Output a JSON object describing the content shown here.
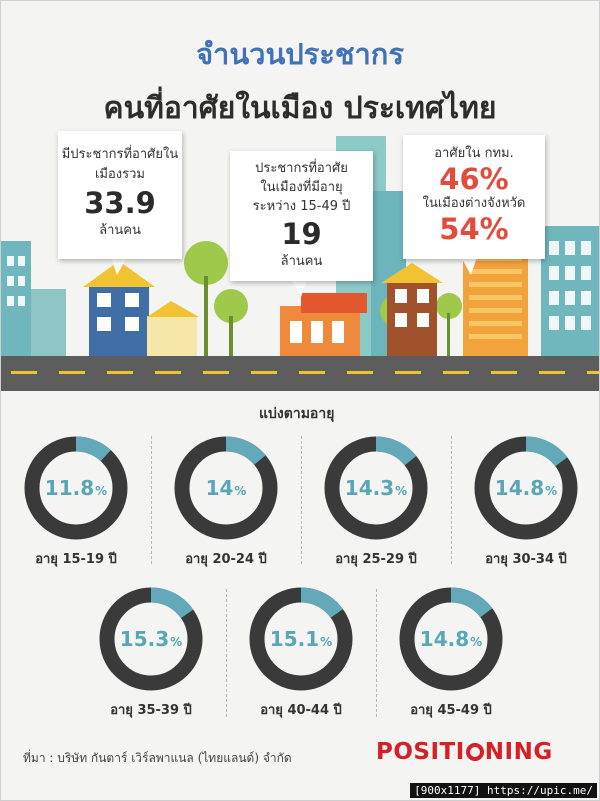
{
  "header": {
    "title_line1": "จำนวนประชากร",
    "title_line2": "คนที่อาศัยในเมือง ประเทศไทย"
  },
  "cards": {
    "total": {
      "line1": "มีประชากรที่อาศัยใน",
      "line2": "เมืองรวม",
      "value": "33.9",
      "unit": "ล้านคน"
    },
    "age_15_49": {
      "line1": "ประชากรที่อาศัย",
      "line2": "ในเมืองที่มีอายุ",
      "line3": "ระหว่าง 15-49 ปี",
      "value": "19",
      "unit": "ล้านคน"
    },
    "location": {
      "label1": "อาศัยใน กทม.",
      "value1": "46%",
      "label2": "ในเมืองต่างจังหวัด",
      "value2": "54%"
    }
  },
  "age_section": {
    "heading": "แบ่งตามอายุ",
    "groups": [
      {
        "label": "อายุ 15-19 ปี",
        "value": "11.8",
        "percent": 11.8,
        "unit": "%"
      },
      {
        "label": "อายุ 20-24 ปี",
        "value": "14",
        "percent": 14,
        "unit": "%"
      },
      {
        "label": "อายุ 25-29 ปี",
        "value": "14.3",
        "percent": 14.3,
        "unit": "%"
      },
      {
        "label": "อายุ 30-34 ปี",
        "value": "14.8",
        "percent": 14.8,
        "unit": "%"
      },
      {
        "label": "อายุ 35-39 ปี",
        "value": "15.3",
        "percent": 15.3,
        "unit": "%"
      },
      {
        "label": "อายุ 40-44 ปี",
        "value": "15.1",
        "percent": 15.1,
        "unit": "%"
      },
      {
        "label": "อายุ 45-49 ปี",
        "value": "14.8",
        "percent": 14.8,
        "unit": "%"
      }
    ]
  },
  "footer": {
    "source": "ที่มา : บริษัท กันตาร์ เวิร์ลพาแนล (ไทยแลนด์) จำกัด",
    "logo_a": "POSITI",
    "logo_b": "NING",
    "credit": "[900x1177] https://upic.me/"
  },
  "colors": {
    "title_blue": "#3f72b8",
    "donut_dark": "#3a3a3a",
    "donut_accent": "#64a9ba",
    "highlight_red": "#e24c3c",
    "brand_red": "#d62027"
  }
}
